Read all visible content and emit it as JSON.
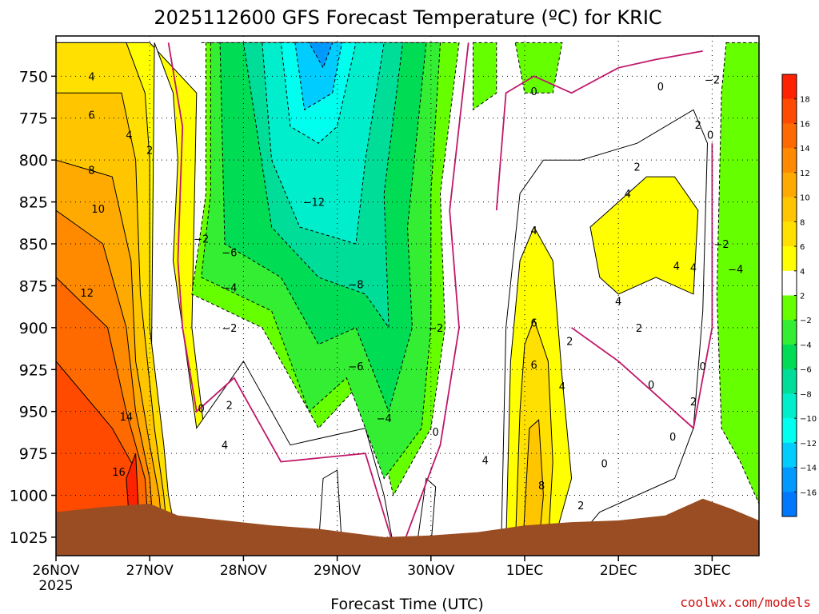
{
  "chart_data": {
    "type": "heatmap",
    "title": "2025112600 GFS Forecast Temperature (ºC) for KRIC",
    "xlabel": "Forecast Time (UTC)",
    "ylabel": "",
    "credit": "coolwx.com/models",
    "xlim": [
      0,
      7.5
    ],
    "ylim": [
      726,
      1036
    ],
    "x_ticks": [
      {
        "x": 0,
        "label": "26NOV",
        "sub": "2025"
      },
      {
        "x": 1,
        "label": "27NOV",
        "sub": ""
      },
      {
        "x": 2,
        "label": "28NOV",
        "sub": ""
      },
      {
        "x": 3,
        "label": "29NOV",
        "sub": ""
      },
      {
        "x": 4,
        "label": "30NOV",
        "sub": ""
      },
      {
        "x": 5,
        "label": "1DEC",
        "sub": ""
      },
      {
        "x": 6,
        "label": "2DEC",
        "sub": ""
      },
      {
        "x": 7,
        "label": "3DEC",
        "sub": ""
      }
    ],
    "y_ticks": [
      750,
      775,
      800,
      825,
      850,
      875,
      900,
      925,
      950,
      975,
      1000,
      1025
    ],
    "colorbar": {
      "labels": [
        18,
        16,
        14,
        12,
        10,
        8,
        6,
        4,
        2,
        -2,
        -4,
        -6,
        -8,
        -10,
        -12,
        -14,
        -16
      ],
      "colors": [
        "#ff2200",
        "#ff4a00",
        "#ff6a00",
        "#ff8a00",
        "#ffaa00",
        "#ffc600",
        "#ffe000",
        "#ffff00",
        "#ffffff",
        "#66ff00",
        "#33ee33",
        "#00dd55",
        "#00dd99",
        "#00eecc",
        "#00ffee",
        "#00ccff",
        "#0099ff",
        "#0077ff"
      ]
    },
    "regions": [
      {
        "temp": 4,
        "points": [
          [
            0,
            730
          ],
          [
            1.0,
            730
          ],
          [
            1.5,
            760
          ],
          [
            1.45,
            900
          ],
          [
            1.6,
            970
          ],
          [
            2.2,
            950
          ],
          [
            2.6,
            1000
          ],
          [
            3.3,
            1010
          ],
          [
            3.5,
            1030
          ],
          [
            0,
            1030
          ]
        ]
      },
      {
        "temp": 2,
        "points": [
          [
            1.05,
            730
          ],
          [
            1.25,
            760
          ],
          [
            1.3,
            800
          ],
          [
            1.25,
            860
          ],
          [
            1.5,
            960
          ],
          [
            2.0,
            920
          ],
          [
            2.5,
            970
          ],
          [
            3.3,
            960
          ],
          [
            3.5,
            1000
          ],
          [
            3.6,
            1030
          ],
          [
            1.0,
            1030
          ]
        ]
      },
      {
        "temp": -2,
        "points": [
          [
            1.55,
            730
          ],
          [
            4.3,
            730
          ],
          [
            4.1,
            820
          ],
          [
            4.15,
            900
          ],
          [
            4.0,
            960
          ],
          [
            3.6,
            1000
          ],
          [
            3.3,
            930
          ],
          [
            2.8,
            960
          ],
          [
            2.2,
            900
          ],
          [
            1.45,
            880
          ],
          [
            1.6,
            820
          ],
          [
            1.6,
            730
          ]
        ]
      },
      {
        "temp": -2,
        "points": [
          [
            4.45,
            730
          ],
          [
            4.7,
            730
          ],
          [
            4.7,
            760
          ],
          [
            4.45,
            770
          ]
        ]
      },
      {
        "temp": -2,
        "points": [
          [
            4.9,
            730
          ],
          [
            5.4,
            730
          ],
          [
            5.3,
            760
          ],
          [
            5.0,
            760
          ]
        ]
      },
      {
        "temp": -2,
        "points": [
          [
            7.15,
            730
          ],
          [
            7.5,
            730
          ],
          [
            7.5,
            1005
          ],
          [
            7.3,
            980
          ],
          [
            7.1,
            960
          ],
          [
            7.05,
            880
          ],
          [
            7.1,
            760
          ]
        ]
      },
      {
        "temp": -4,
        "points": [
          [
            1.65,
            730
          ],
          [
            4.1,
            730
          ],
          [
            4.0,
            820
          ],
          [
            4.0,
            900
          ],
          [
            3.9,
            960
          ],
          [
            3.5,
            990
          ],
          [
            3.1,
            930
          ],
          [
            2.7,
            950
          ],
          [
            2.3,
            890
          ],
          [
            1.55,
            870
          ],
          [
            1.65,
            820
          ]
        ]
      },
      {
        "temp": -6,
        "points": [
          [
            1.75,
            730
          ],
          [
            3.95,
            730
          ],
          [
            3.75,
            840
          ],
          [
            3.8,
            900
          ],
          [
            3.55,
            950
          ],
          [
            3.2,
            900
          ],
          [
            2.8,
            910
          ],
          [
            2.4,
            870
          ],
          [
            1.8,
            850
          ]
        ]
      },
      {
        "temp": -8,
        "points": [
          [
            2.0,
            730
          ],
          [
            3.7,
            730
          ],
          [
            3.5,
            820
          ],
          [
            3.55,
            900
          ],
          [
            3.3,
            880
          ],
          [
            2.8,
            870
          ],
          [
            2.3,
            840
          ]
        ]
      },
      {
        "temp": -10,
        "points": [
          [
            2.2,
            730
          ],
          [
            3.5,
            730
          ],
          [
            3.3,
            800
          ],
          [
            3.2,
            850
          ],
          [
            2.6,
            840
          ],
          [
            2.3,
            800
          ]
        ]
      },
      {
        "temp": -12,
        "points": [
          [
            2.4,
            730
          ],
          [
            3.2,
            730
          ],
          [
            3.0,
            780
          ],
          [
            2.8,
            790
          ],
          [
            2.5,
            780
          ]
        ]
      },
      {
        "temp": -14,
        "points": [
          [
            2.55,
            730
          ],
          [
            3.05,
            730
          ],
          [
            2.95,
            760
          ],
          [
            2.65,
            770
          ]
        ]
      },
      {
        "temp": -16,
        "points": [
          [
            2.7,
            730
          ],
          [
            2.95,
            730
          ],
          [
            2.85,
            745
          ]
        ]
      },
      {
        "temp": 2,
        "points": [
          [
            4.75,
            1030
          ],
          [
            4.8,
            900
          ],
          [
            4.95,
            820
          ],
          [
            5.2,
            800
          ],
          [
            5.6,
            800
          ],
          [
            6.2,
            790
          ],
          [
            6.8,
            770
          ],
          [
            6.95,
            790
          ],
          [
            6.9,
            890
          ],
          [
            6.8,
            960
          ],
          [
            6.6,
            990
          ],
          [
            6.2,
            1000
          ],
          [
            5.8,
            1010
          ],
          [
            5.5,
            1030
          ]
        ]
      },
      {
        "temp": 4,
        "points": [
          [
            4.8,
            1030
          ],
          [
            4.85,
            920
          ],
          [
            4.95,
            860
          ],
          [
            5.1,
            840
          ],
          [
            5.3,
            860
          ],
          [
            5.4,
            930
          ],
          [
            5.5,
            990
          ],
          [
            5.3,
            1030
          ]
        ]
      },
      {
        "temp": 4,
        "points": [
          [
            5.7,
            840
          ],
          [
            5.9,
            830
          ],
          [
            6.3,
            810
          ],
          [
            6.6,
            810
          ],
          [
            6.85,
            830
          ],
          [
            6.8,
            880
          ],
          [
            6.4,
            870
          ],
          [
            6.0,
            880
          ],
          [
            5.8,
            870
          ]
        ]
      },
      {
        "temp": 6,
        "points": [
          [
            4.9,
            1030
          ],
          [
            4.95,
            950
          ],
          [
            5.0,
            910
          ],
          [
            5.1,
            895
          ],
          [
            5.25,
            920
          ],
          [
            5.3,
            980
          ],
          [
            5.25,
            1030
          ]
        ]
      },
      {
        "temp": 8,
        "points": [
          [
            4.98,
            1030
          ],
          [
            5.05,
            960
          ],
          [
            5.15,
            955
          ],
          [
            5.2,
            1000
          ],
          [
            5.15,
            1030
          ]
        ]
      },
      {
        "temp": 2,
        "points": [
          [
            3.85,
            1030
          ],
          [
            3.95,
            990
          ],
          [
            4.05,
            995
          ],
          [
            4.0,
            1030
          ]
        ]
      },
      {
        "temp": 2,
        "points": [
          [
            2.8,
            1030
          ],
          [
            2.85,
            990
          ],
          [
            3.0,
            985
          ],
          [
            3.05,
            1030
          ]
        ]
      },
      {
        "temp": 6,
        "points": [
          [
            0,
            730
          ],
          [
            0.75,
            730
          ],
          [
            0.95,
            760
          ],
          [
            1.0,
            800
          ],
          [
            1.0,
            900
          ],
          [
            1.15,
            970
          ],
          [
            1.2,
            1000
          ],
          [
            1.3,
            1030
          ],
          [
            0,
            1030
          ]
        ]
      },
      {
        "temp": 8,
        "points": [
          [
            0,
            760
          ],
          [
            0.7,
            760
          ],
          [
            0.85,
            800
          ],
          [
            0.9,
            880
          ],
          [
            1.05,
            960
          ],
          [
            1.15,
            1000
          ],
          [
            1.2,
            1030
          ],
          [
            0,
            1030
          ]
        ]
      },
      {
        "temp": 10,
        "points": [
          [
            0,
            800
          ],
          [
            0.6,
            810
          ],
          [
            0.8,
            860
          ],
          [
            0.85,
            920
          ],
          [
            1.0,
            970
          ],
          [
            1.1,
            1000
          ],
          [
            1.15,
            1030
          ],
          [
            0,
            1030
          ]
        ]
      },
      {
        "temp": 12,
        "points": [
          [
            0,
            830
          ],
          [
            0.5,
            850
          ],
          [
            0.75,
            900
          ],
          [
            0.85,
            950
          ],
          [
            1.0,
            990
          ],
          [
            1.05,
            1030
          ],
          [
            0,
            1030
          ]
        ]
      },
      {
        "temp": 14,
        "points": [
          [
            0,
            870
          ],
          [
            0.55,
            900
          ],
          [
            0.75,
            950
          ],
          [
            0.95,
            990
          ],
          [
            1.0,
            1030
          ],
          [
            0,
            1030
          ]
        ]
      },
      {
        "temp": 16,
        "points": [
          [
            0,
            920
          ],
          [
            0.6,
            960
          ],
          [
            0.85,
            985
          ],
          [
            0.9,
            1030
          ],
          [
            0,
            1030
          ]
        ]
      },
      {
        "temp": 18,
        "points": [
          [
            0.75,
            990
          ],
          [
            0.85,
            975
          ],
          [
            0.9,
            1030
          ],
          [
            0.8,
            1030
          ]
        ]
      }
    ],
    "terrain_color": "#9a4d22",
    "terrain": [
      [
        0,
        1010
      ],
      [
        0.5,
        1007
      ],
      [
        1.0,
        1005
      ],
      [
        1.3,
        1012
      ],
      [
        1.8,
        1015
      ],
      [
        2.3,
        1018
      ],
      [
        2.8,
        1020
      ],
      [
        3.5,
        1025
      ],
      [
        4.0,
        1024
      ],
      [
        4.5,
        1022
      ],
      [
        5.0,
        1018
      ],
      [
        5.5,
        1016
      ],
      [
        6.0,
        1015
      ],
      [
        6.5,
        1012
      ],
      [
        6.9,
        1002
      ],
      [
        7.2,
        1008
      ],
      [
        7.5,
        1015
      ]
    ],
    "contour_labels": [
      {
        "x": 0.38,
        "y": 750,
        "text": "4"
      },
      {
        "x": 0.38,
        "y": 773,
        "text": "6"
      },
      {
        "x": 0.38,
        "y": 806,
        "text": "8"
      },
      {
        "x": 0.45,
        "y": 829,
        "text": "10"
      },
      {
        "x": 0.33,
        "y": 879,
        "text": "12"
      },
      {
        "x": 0.75,
        "y": 953,
        "text": "14"
      },
      {
        "x": 0.67,
        "y": 986,
        "text": "16"
      },
      {
        "x": 0.78,
        "y": 785,
        "text": "4"
      },
      {
        "x": 1.0,
        "y": 794,
        "text": "2"
      },
      {
        "x": 1.55,
        "y": 847,
        "text": "-2"
      },
      {
        "x": 1.85,
        "y": 855,
        "text": "-6"
      },
      {
        "x": 1.85,
        "y": 876,
        "text": "-4"
      },
      {
        "x": 1.85,
        "y": 900,
        "text": "-2"
      },
      {
        "x": 1.55,
        "y": 948,
        "text": "0"
      },
      {
        "x": 1.85,
        "y": 946,
        "text": "2"
      },
      {
        "x": 1.8,
        "y": 970,
        "text": "4"
      },
      {
        "x": 2.75,
        "y": 825,
        "text": "-12"
      },
      {
        "x": 3.2,
        "y": 874,
        "text": "-8"
      },
      {
        "x": 3.2,
        "y": 923,
        "text": "-6"
      },
      {
        "x": 3.5,
        "y": 954,
        "text": "-4"
      },
      {
        "x": 4.05,
        "y": 900,
        "text": "-2"
      },
      {
        "x": 4.05,
        "y": 962,
        "text": "0"
      },
      {
        "x": 5.1,
        "y": 842,
        "text": "4"
      },
      {
        "x": 5.1,
        "y": 897,
        "text": "6"
      },
      {
        "x": 5.1,
        "y": 922,
        "text": "6"
      },
      {
        "x": 4.58,
        "y": 979,
        "text": "4"
      },
      {
        "x": 5.18,
        "y": 994,
        "text": "8"
      },
      {
        "x": 5.4,
        "y": 935,
        "text": "4"
      },
      {
        "x": 5.48,
        "y": 908,
        "text": "2"
      },
      {
        "x": 5.6,
        "y": 1006,
        "text": "2"
      },
      {
        "x": 5.85,
        "y": 981,
        "text": "0"
      },
      {
        "x": 6.2,
        "y": 804,
        "text": "2"
      },
      {
        "x": 5.1,
        "y": 759,
        "text": "0"
      },
      {
        "x": 6.1,
        "y": 820,
        "text": "4"
      },
      {
        "x": 6.45,
        "y": 756,
        "text": "0"
      },
      {
        "x": 7.0,
        "y": 752,
        "text": "-2"
      },
      {
        "x": 6.85,
        "y": 779,
        "text": "2"
      },
      {
        "x": 6.98,
        "y": 785,
        "text": "0"
      },
      {
        "x": 7.1,
        "y": 850,
        "text": "-2"
      },
      {
        "x": 7.25,
        "y": 865,
        "text": "-4"
      },
      {
        "x": 6.8,
        "y": 864,
        "text": "4"
      },
      {
        "x": 6.62,
        "y": 863,
        "text": "4"
      },
      {
        "x": 6.0,
        "y": 884,
        "text": "4"
      },
      {
        "x": 6.22,
        "y": 900,
        "text": "2"
      },
      {
        "x": 6.9,
        "y": 923,
        "text": "0"
      },
      {
        "x": 6.35,
        "y": 934,
        "text": "0"
      },
      {
        "x": 6.8,
        "y": 944,
        "text": "2"
      },
      {
        "x": 6.58,
        "y": 965,
        "text": "0"
      }
    ]
  }
}
